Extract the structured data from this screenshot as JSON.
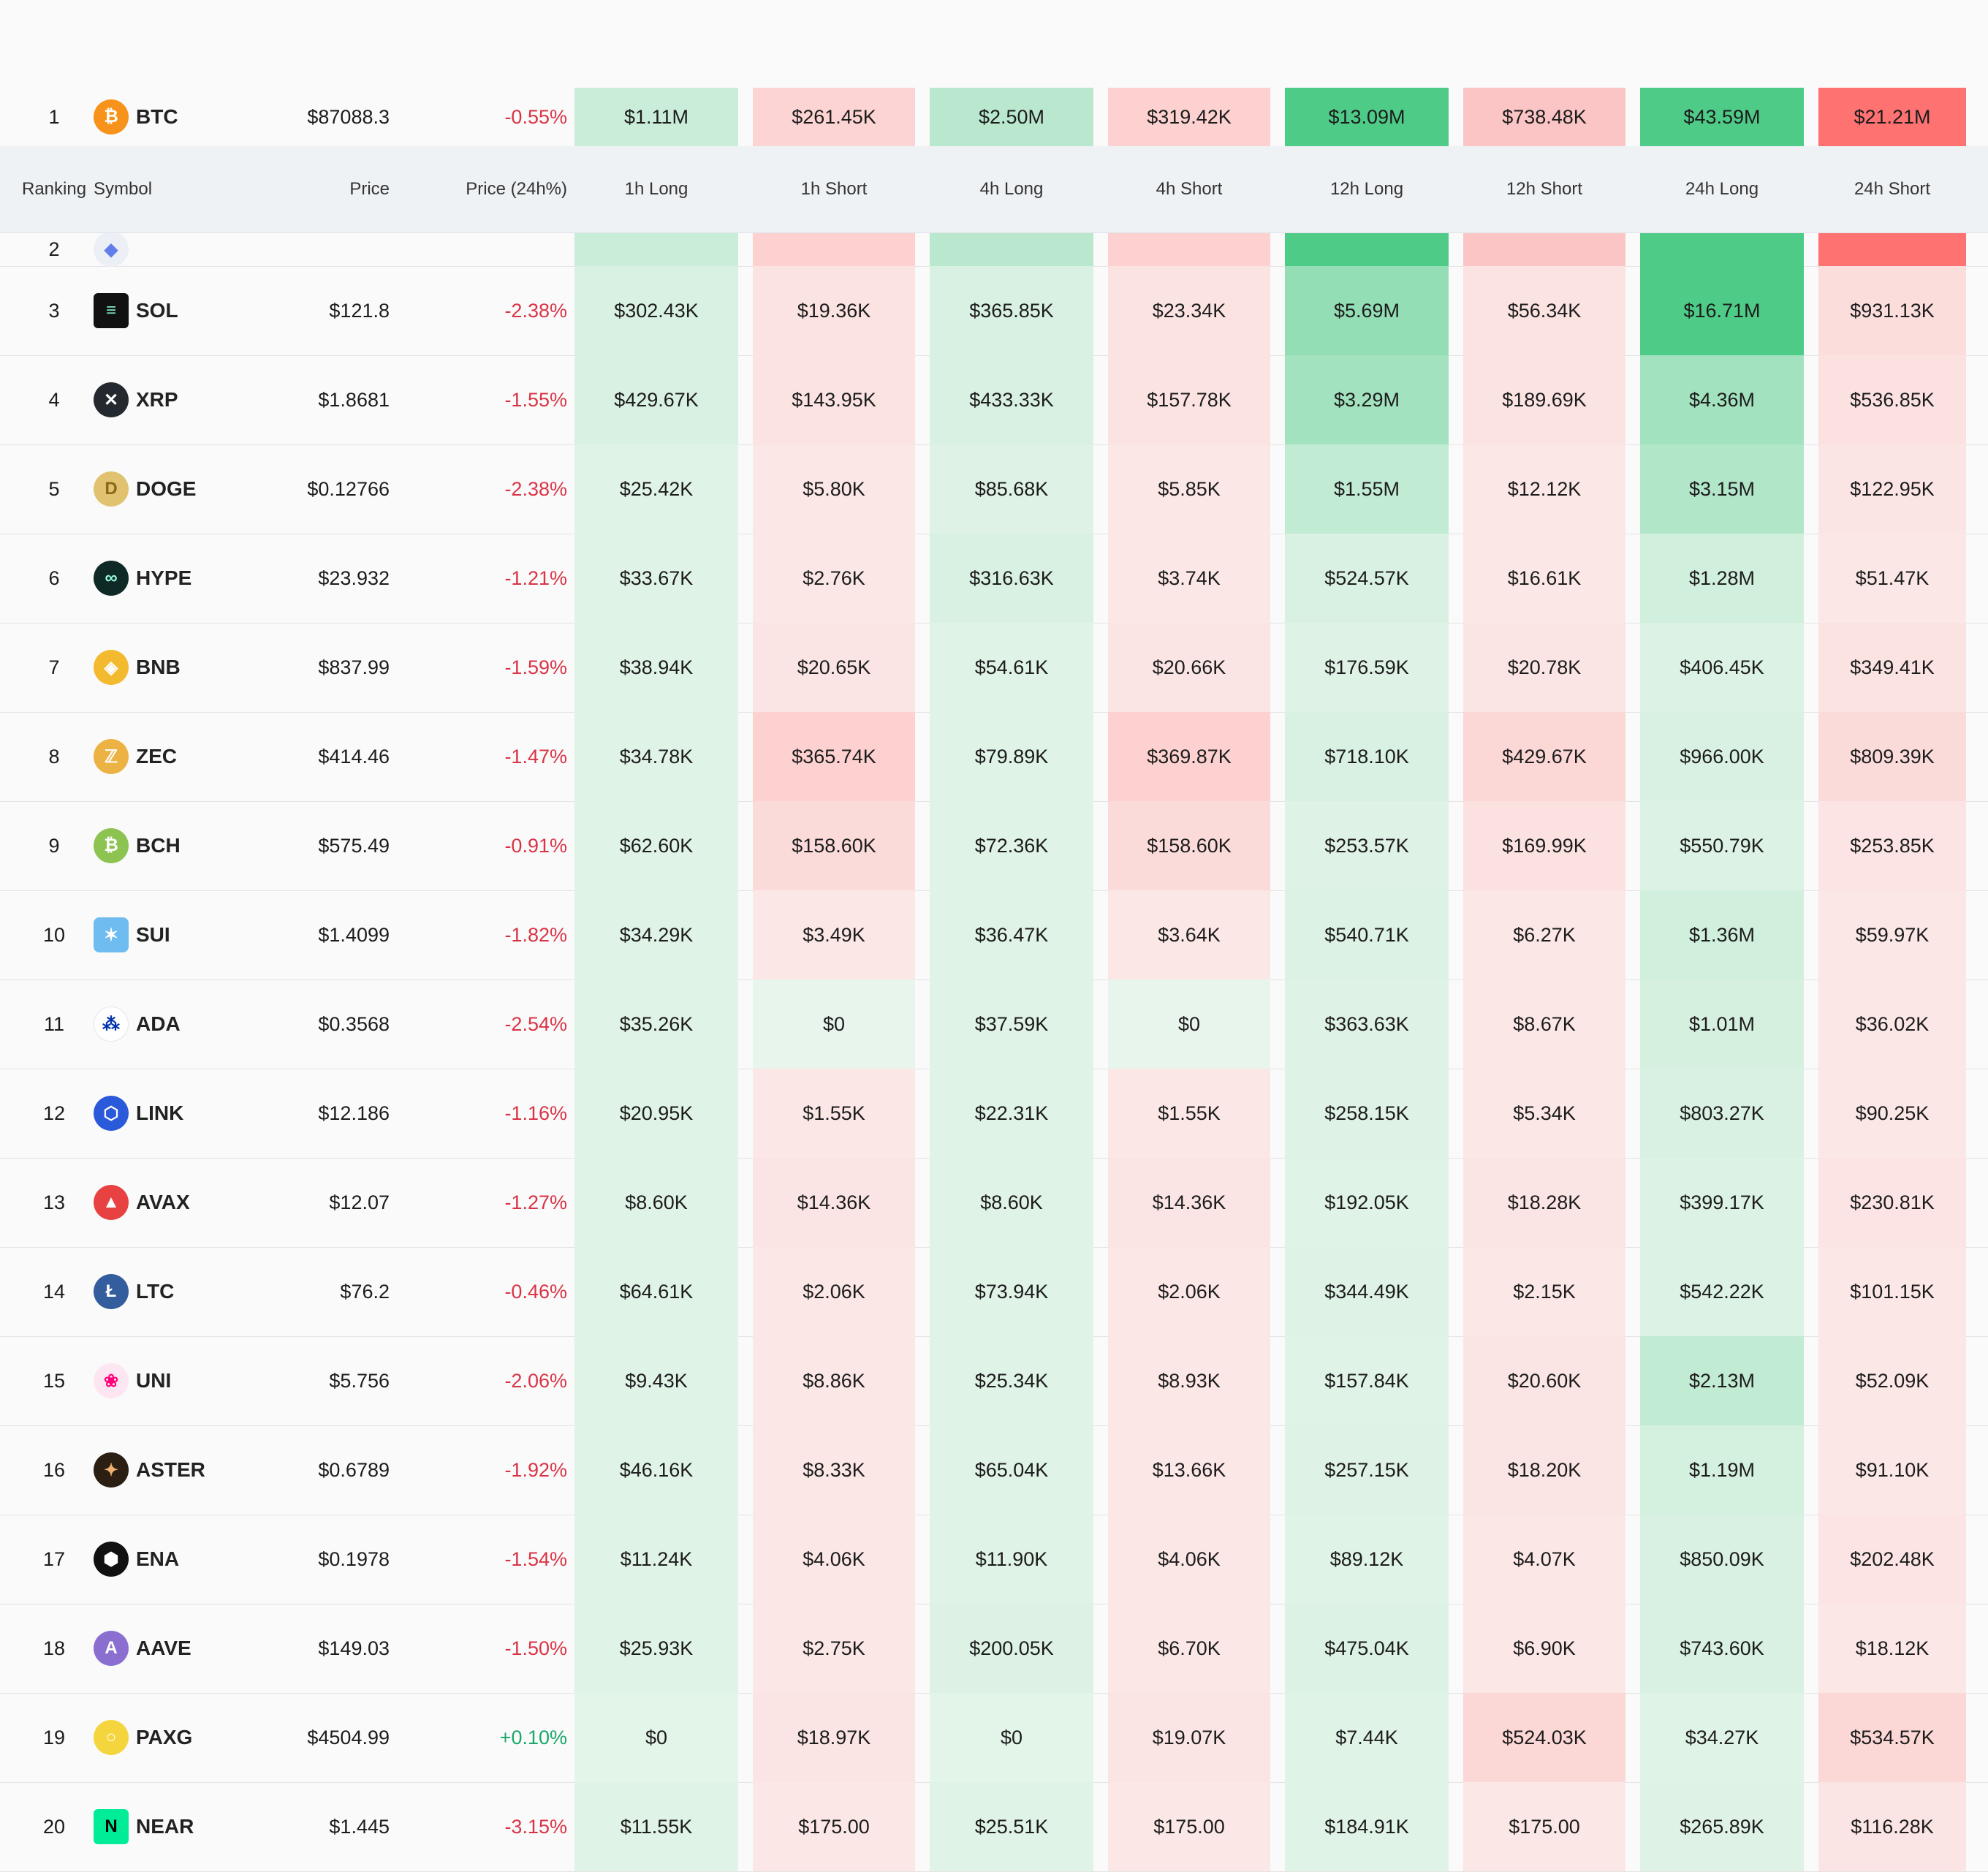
{
  "header": {
    "ranking": "Ranking",
    "symbol": "Symbol",
    "price": "Price",
    "price_change": "Price (24h%)",
    "h1_long": "1h Long",
    "h1_short": "1h Short",
    "h4_long": "4h Long",
    "h4_short": "4h Short",
    "h12_long": "12h Long",
    "h12_short": "12h Short",
    "h24_long": "24h Long",
    "h24_short": "24h Short"
  },
  "colors": {
    "long_base": "#e8f5ec",
    "long_strong": "#4fcb88",
    "short_base": "#fbe9e8",
    "short_strong": "#fe7272",
    "negative_text": "#d93446",
    "positive_text": "#1aa86a"
  },
  "rows": [
    {
      "rank": "1",
      "symbol": "BTC",
      "icon": "btc-icon",
      "price": "$87088.3",
      "change": "-0.55%",
      "dir": "neg",
      "cells": [
        "$1.11M",
        "$261.45K",
        "$2.50M",
        "$319.42K",
        "$13.09M",
        "$738.48K",
        "$43.59M",
        "$21.21M"
      ],
      "levels": [
        0.2,
        0.18,
        0.3,
        0.2,
        1,
        0.3,
        1,
        1
      ]
    },
    {
      "rank": "2",
      "symbol": "",
      "icon": "eth-icon",
      "price": "",
      "change": "",
      "dir": "neg",
      "cells": [
        "",
        "",
        "",
        "",
        "",
        "",
        "",
        ""
      ],
      "levels": [
        0.2,
        0.2,
        0.3,
        0.2,
        1,
        0.3,
        1,
        1
      ]
    },
    {
      "rank": "3",
      "symbol": "SOL",
      "icon": "sol-icon",
      "price": "$121.8",
      "change": "-2.38%",
      "dir": "neg",
      "cells": [
        "$302.43K",
        "$19.36K",
        "$365.85K",
        "$23.34K",
        "$5.69M",
        "$56.34K",
        "$16.71M",
        "$931.13K"
      ],
      "levels": [
        0.1,
        0.05,
        0.1,
        0.05,
        0.55,
        0.05,
        1,
        0.1
      ]
    },
    {
      "rank": "4",
      "symbol": "XRP",
      "icon": "xrp-icon",
      "price": "$1.8681",
      "change": "-1.55%",
      "dir": "neg",
      "cells": [
        "$429.67K",
        "$143.95K",
        "$433.33K",
        "$157.78K",
        "$3.29M",
        "$189.69K",
        "$4.36M",
        "$536.85K"
      ],
      "levels": [
        0.1,
        0.05,
        0.1,
        0.05,
        0.45,
        0.05,
        0.45,
        0.06
      ]
    },
    {
      "rank": "5",
      "symbol": "DOGE",
      "icon": "doge-icon",
      "price": "$0.12766",
      "change": "-2.38%",
      "dir": "neg",
      "cells": [
        "$25.42K",
        "$5.80K",
        "$85.68K",
        "$5.85K",
        "$1.55M",
        "$12.12K",
        "$3.15M",
        "$122.95K"
      ],
      "levels": [
        0.05,
        0.02,
        0.06,
        0.02,
        0.25,
        0.02,
        0.35,
        0.03
      ]
    },
    {
      "rank": "6",
      "symbol": "HYPE",
      "icon": "hype-icon",
      "price": "$23.932",
      "change": "-1.21%",
      "dir": "neg",
      "cells": [
        "$33.67K",
        "$2.76K",
        "$316.63K",
        "$3.74K",
        "$524.57K",
        "$16.61K",
        "$1.28M",
        "$51.47K"
      ],
      "levels": [
        0.05,
        0.02,
        0.1,
        0.02,
        0.1,
        0.02,
        0.15,
        0.02
      ]
    },
    {
      "rank": "7",
      "symbol": "BNB",
      "icon": "bnb-icon",
      "price": "$837.99",
      "change": "-1.59%",
      "dir": "neg",
      "cells": [
        "$38.94K",
        "$20.65K",
        "$54.61K",
        "$20.66K",
        "$176.59K",
        "$20.78K",
        "$406.45K",
        "$349.41K"
      ],
      "levels": [
        0.05,
        0.03,
        0.05,
        0.03,
        0.06,
        0.03,
        0.08,
        0.05
      ]
    },
    {
      "rank": "8",
      "symbol": "ZEC",
      "icon": "zec-icon",
      "price": "$414.46",
      "change": "-1.47%",
      "dir": "neg",
      "cells": [
        "$34.78K",
        "$365.74K",
        "$79.89K",
        "$369.87K",
        "$718.10K",
        "$429.67K",
        "$966.00K",
        "$809.39K"
      ],
      "levels": [
        0.05,
        0.2,
        0.05,
        0.2,
        0.1,
        0.15,
        0.1,
        0.12
      ]
    },
    {
      "rank": "9",
      "symbol": "BCH",
      "icon": "bch-icon",
      "price": "$575.49",
      "change": "-0.91%",
      "dir": "neg",
      "cells": [
        "$62.60K",
        "$158.60K",
        "$72.36K",
        "$158.60K",
        "$253.57K",
        "$169.99K",
        "$550.79K",
        "$253.85K"
      ],
      "levels": [
        0.05,
        0.12,
        0.05,
        0.12,
        0.06,
        0.06,
        0.08,
        0.04
      ]
    },
    {
      "rank": "10",
      "symbol": "SUI",
      "icon": "sui-icon",
      "price": "$1.4099",
      "change": "-1.82%",
      "dir": "neg",
      "cells": [
        "$34.29K",
        "$3.49K",
        "$36.47K",
        "$3.64K",
        "$540.71K",
        "$6.27K",
        "$1.36M",
        "$59.97K"
      ],
      "levels": [
        0.05,
        0.02,
        0.05,
        0.02,
        0.08,
        0.02,
        0.15,
        0.02
      ]
    },
    {
      "rank": "11",
      "symbol": "ADA",
      "icon": "ada-icon",
      "price": "$0.3568",
      "change": "-2.54%",
      "dir": "neg",
      "cells": [
        "$35.26K",
        "$0",
        "$37.59K",
        "$0",
        "$363.63K",
        "$8.67K",
        "$1.01M",
        "$36.02K"
      ],
      "levels": [
        0.05,
        0,
        0.05,
        0,
        0.06,
        0.02,
        0.12,
        0.02
      ],
      "zero_as_long": [
        1,
        3
      ]
    },
    {
      "rank": "12",
      "symbol": "LINK",
      "icon": "link-icon",
      "price": "$12.186",
      "change": "-1.16%",
      "dir": "neg",
      "cells": [
        "$20.95K",
        "$1.55K",
        "$22.31K",
        "$1.55K",
        "$258.15K",
        "$5.34K",
        "$803.27K",
        "$90.25K"
      ],
      "levels": [
        0.05,
        0.02,
        0.05,
        0.02,
        0.06,
        0.02,
        0.1,
        0.02
      ]
    },
    {
      "rank": "13",
      "symbol": "AVAX",
      "icon": "avax-icon",
      "price": "$12.07",
      "change": "-1.27%",
      "dir": "neg",
      "cells": [
        "$8.60K",
        "$14.36K",
        "$8.60K",
        "$14.36K",
        "$192.05K",
        "$18.28K",
        "$399.17K",
        "$230.81K"
      ],
      "levels": [
        0.05,
        0.03,
        0.05,
        0.03,
        0.05,
        0.03,
        0.08,
        0.04
      ]
    },
    {
      "rank": "14",
      "symbol": "LTC",
      "icon": "ltc-icon",
      "price": "$76.2",
      "change": "-0.46%",
      "dir": "neg",
      "cells": [
        "$64.61K",
        "$2.06K",
        "$73.94K",
        "$2.06K",
        "$344.49K",
        "$2.15K",
        "$542.22K",
        "$101.15K"
      ],
      "levels": [
        0.05,
        0.02,
        0.05,
        0.02,
        0.06,
        0.02,
        0.08,
        0.02
      ]
    },
    {
      "rank": "15",
      "symbol": "UNI",
      "icon": "uni-icon",
      "price": "$5.756",
      "change": "-2.06%",
      "dir": "neg",
      "cells": [
        "$9.43K",
        "$8.86K",
        "$25.34K",
        "$8.93K",
        "$157.84K",
        "$20.60K",
        "$2.13M",
        "$52.09K"
      ],
      "levels": [
        0.05,
        0.02,
        0.05,
        0.02,
        0.05,
        0.03,
        0.25,
        0.02
      ]
    },
    {
      "rank": "16",
      "symbol": "ASTER",
      "icon": "aster-icon",
      "price": "$0.6789",
      "change": "-1.92%",
      "dir": "neg",
      "cells": [
        "$46.16K",
        "$8.33K",
        "$65.04K",
        "$13.66K",
        "$257.15K",
        "$18.20K",
        "$1.19M",
        "$91.10K"
      ],
      "levels": [
        0.05,
        0.02,
        0.05,
        0.02,
        0.06,
        0.03,
        0.13,
        0.02
      ]
    },
    {
      "rank": "17",
      "symbol": "ENA",
      "icon": "ena-icon",
      "price": "$0.1978",
      "change": "-1.54%",
      "dir": "neg",
      "cells": [
        "$11.24K",
        "$4.06K",
        "$11.90K",
        "$4.06K",
        "$89.12K",
        "$4.07K",
        "$850.09K",
        "$202.48K"
      ],
      "levels": [
        0.05,
        0.02,
        0.05,
        0.02,
        0.05,
        0.02,
        0.1,
        0.04
      ]
    },
    {
      "rank": "18",
      "symbol": "AAVE",
      "icon": "aave-icon",
      "price": "$149.03",
      "change": "-1.50%",
      "dir": "neg",
      "cells": [
        "$25.93K",
        "$2.75K",
        "$200.05K",
        "$6.70K",
        "$475.04K",
        "$6.90K",
        "$743.60K",
        "$18.12K"
      ],
      "levels": [
        0.05,
        0.02,
        0.07,
        0.02,
        0.08,
        0.02,
        0.1,
        0.02
      ]
    },
    {
      "rank": "19",
      "symbol": "PAXG",
      "icon": "paxg-icon",
      "price": "$4504.99",
      "change": "+0.10%",
      "dir": "pos",
      "cells": [
        "$0",
        "$18.97K",
        "$0",
        "$19.07K",
        "$7.44K",
        "$524.03K",
        "$34.27K",
        "$534.57K"
      ],
      "levels": [
        0.03,
        0.03,
        0.03,
        0.03,
        0.05,
        0.15,
        0.05,
        0.15
      ]
    },
    {
      "rank": "20",
      "symbol": "NEAR",
      "icon": "near-icon",
      "price": "$1.445",
      "change": "-3.15%",
      "dir": "neg",
      "cells": [
        "$11.55K",
        "$175.00",
        "$25.51K",
        "$175.00",
        "$184.91K",
        "$175.00",
        "$265.89K",
        "$116.28K"
      ],
      "levels": [
        0.05,
        0.02,
        0.05,
        0.02,
        0.05,
        0.02,
        0.06,
        0.03
      ]
    }
  ]
}
